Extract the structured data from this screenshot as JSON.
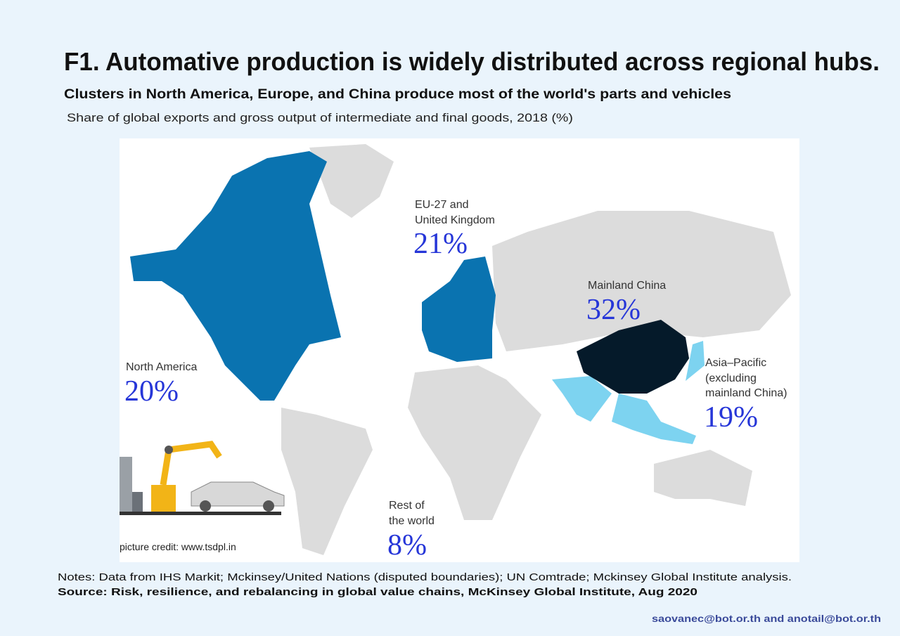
{
  "header": {
    "title": "F1. Automative production is widely distributed across regional hubs.",
    "subtitle": "Clusters in North America, Europe, and China produce most of the world's parts and vehicles",
    "description": "Share of global exports and gross output of intermediate and final goods, 2018 (%)"
  },
  "regions": [
    {
      "lines": [
        "EU-27 and",
        "United Kingdom"
      ],
      "share": "21%"
    },
    {
      "lines": [
        "Mainland China"
      ],
      "share": "32%"
    },
    {
      "lines": [
        "Asia–Pacific",
        "(excluding",
        "mainland China)"
      ],
      "share": "19%"
    },
    {
      "lines": [
        "North America"
      ],
      "share": "20%"
    },
    {
      "lines": [
        "Rest of",
        "the world"
      ],
      "share": "8%"
    }
  ],
  "credit": "picture credit: www.tsdpl.in",
  "footer": {
    "notes": "Notes: Data from IHS Markit; Mckinsey/United Nations (disputed boundaries); UN Comtrade; Mckinsey Global Institute analysis.",
    "source": "Source: Risk, resilience, and rebalancing in global value chains, McKinsey Global Institute, Aug 2020",
    "contact": "saovanec@bot.or.th and anotail@bot.or.th"
  }
}
